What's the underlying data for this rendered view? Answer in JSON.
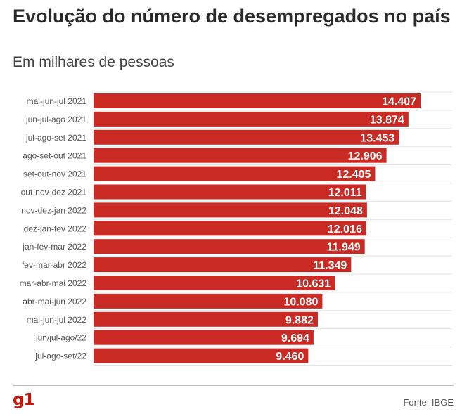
{
  "header": {
    "title": "Evolução do número de desempregados no país",
    "subtitle": "Em milhares de pessoas"
  },
  "footer": {
    "logo": "g1",
    "source": "Fonte: IBGE"
  },
  "colors": {
    "bar": "#c92a23",
    "grid": "#e3e3e3",
    "label_text": "#ffffff",
    "category_text": "#555555"
  },
  "chart_data": {
    "type": "bar",
    "orientation": "horizontal",
    "categories": [
      "mai-jun-jul 2021",
      "jun-jul-ago 2021",
      "jul-ago-set 2021",
      "ago-set-out 2021",
      "set-out-nov 2021",
      "out-nov-dez 2021",
      "nov-dez-jan 2022",
      "dez-jan-fev 2022",
      "jan-fev-mar 2022",
      "fev-mar-abr 2022",
      "mar-abr-mai 2022",
      "abr-mai-jun 2022",
      "mai-jun-jul 2022",
      "jun/jul-ago/22",
      "jul-ago-set/22"
    ],
    "values": [
      14407,
      13874,
      13453,
      12906,
      12405,
      12011,
      12048,
      12016,
      11949,
      11349,
      10631,
      10080,
      9882,
      9694,
      9460
    ],
    "data_labels": [
      "14.407",
      "13.874",
      "13.453",
      "12.906",
      "12.405",
      "12.011",
      "12.048",
      "12.016",
      "11.949",
      "11.349",
      "10.631",
      "10.080",
      "9.882",
      "9.694",
      "9.460"
    ],
    "xlim": [
      0,
      15800
    ],
    "grid": true
  }
}
